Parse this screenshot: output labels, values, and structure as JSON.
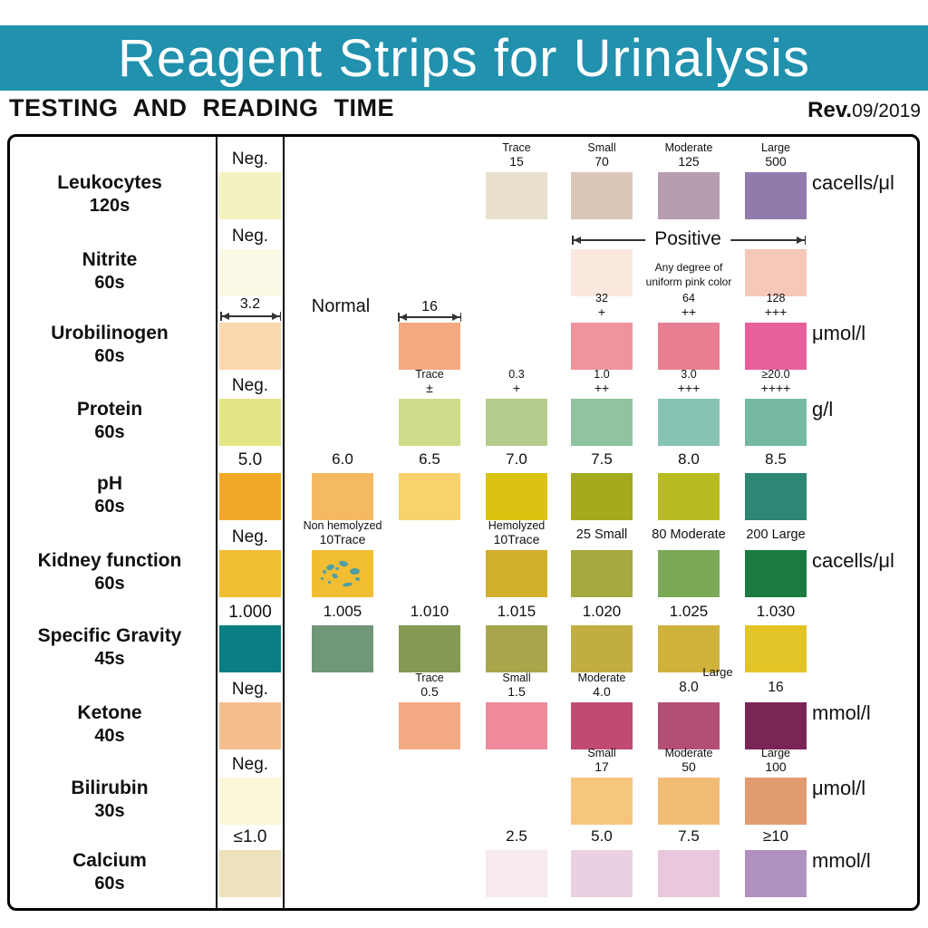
{
  "header": {
    "title": "Reagent Strips for Urinalysis",
    "subtitle": "TESTING AND READING TIME",
    "revision_label": "Rev.",
    "revision_value": "09/2019"
  },
  "theme": {
    "band_color": "#2191ad",
    "border_color": "#000000",
    "speckle_color": "#4e9fa3"
  },
  "chart_data": {
    "type": "table",
    "title": "Reagent Strips for Urinalysis",
    "subtitle": "TESTING AND READING TIME",
    "revision": "Rev.09/2019",
    "legend_note": "Column 1 (boxed) is the negative/baseline reference pad; columns 2-7 are increasing reaction levels",
    "rows": [
      {
        "parameter": "Leukocytes",
        "time": "120s",
        "unit": "cacells/μl",
        "box": {
          "label": "Neg.",
          "color": "#f5f2c2"
        },
        "cells": [
          {
            "col": 4,
            "labels": [
              "Trace",
              "15"
            ],
            "color": "#e8e0cc"
          },
          {
            "col": 5,
            "labels": [
              "Small",
              "70"
            ],
            "color": "#dbc6b8"
          },
          {
            "col": 6,
            "labels": [
              "Moderate",
              "125"
            ],
            "color": "#b89db0"
          },
          {
            "col": 7,
            "labels": [
              "Large",
              "500"
            ],
            "color": "#917bad"
          }
        ]
      },
      {
        "parameter": "Nitrite",
        "time": "60s",
        "unit": null,
        "box": {
          "label": "Neg.",
          "color": "#fdf9e7"
        },
        "positive_span": {
          "label": "Positive",
          "note": [
            "Any degree of",
            "uniform pink color"
          ]
        },
        "cells": [
          {
            "col": 5,
            "labels": [],
            "color": "#fae8de"
          },
          {
            "col": 7,
            "labels": [],
            "color": "#f5c8b8"
          }
        ]
      },
      {
        "parameter": "Urobilinogen",
        "time": "60s",
        "unit": "μmol/l",
        "box": {
          "label": "3.2",
          "arrow": true,
          "color": "#fbd8ad"
        },
        "normal_label": "Normal",
        "cells": [
          {
            "col": 3,
            "labels": [
              "16"
            ],
            "arrow": true,
            "color": "#f4a97e"
          },
          {
            "col": 5,
            "labels": [
              "32",
              "+"
            ],
            "color": "#ef949c"
          },
          {
            "col": 6,
            "labels": [
              "64",
              "++"
            ],
            "color": "#e87e92"
          },
          {
            "col": 7,
            "labels": [
              "128",
              "+++"
            ],
            "color": "#e7609b"
          }
        ]
      },
      {
        "parameter": "Protein",
        "time": "60s",
        "unit": "g/l",
        "box": {
          "label": "Neg.",
          "color": "#e4e584"
        },
        "cells": [
          {
            "col": 3,
            "labels": [
              "Trace",
              "±"
            ],
            "color": "#cedc8a"
          },
          {
            "col": 4,
            "labels": [
              "0.3",
              "+"
            ],
            "color": "#b3cc8b"
          },
          {
            "col": 5,
            "labels": [
              "1.0",
              "++"
            ],
            "color": "#90c3a0"
          },
          {
            "col": 6,
            "labels": [
              "3.0",
              "+++"
            ],
            "color": "#87c3b5"
          },
          {
            "col": 7,
            "labels": [
              "≥20.0",
              "++++"
            ],
            "color": "#75b9a3"
          }
        ]
      },
      {
        "parameter": "pH",
        "time": "60s",
        "unit": null,
        "box": {
          "label": "5.0",
          "color": "#f2a827"
        },
        "cells": [
          {
            "col": 2,
            "labels": [
              "6.0"
            ],
            "color": "#f6b963"
          },
          {
            "col": 3,
            "labels": [
              "6.5"
            ],
            "color": "#f8d26a"
          },
          {
            "col": 4,
            "labels": [
              "7.0"
            ],
            "color": "#dbc311"
          },
          {
            "col": 5,
            "labels": [
              "7.5"
            ],
            "color": "#a4a91e"
          },
          {
            "col": 6,
            "labels": [
              "8.0"
            ],
            "color": "#b8bc21"
          },
          {
            "col": 7,
            "labels": [
              "8.5"
            ],
            "color": "#2e8674"
          }
        ]
      },
      {
        "parameter": "Kidney function",
        "time": "60s",
        "unit": "cacells/μl",
        "box": {
          "label": "Neg.",
          "color": "#f1bd33"
        },
        "cells": [
          {
            "col": 2,
            "labels": [
              "Non hemolyzed",
              "10Trace"
            ],
            "color": "#f1bd33",
            "speckled": true
          },
          {
            "col": 4,
            "labels": [
              "Hemolyzed",
              "10Trace"
            ],
            "color": "#d2af2b"
          },
          {
            "col": 5,
            "labels": [
              "25 Small"
            ],
            "color": "#a6a840"
          },
          {
            "col": 6,
            "labels": [
              "80 Moderate"
            ],
            "color": "#7ba958"
          },
          {
            "col": 7,
            "labels": [
              "200 Large"
            ],
            "color": "#1a7a40"
          }
        ]
      },
      {
        "parameter": "Specific Gravity",
        "time": "45s",
        "unit": null,
        "box": {
          "label": "1.000",
          "color": "#0a7e82"
        },
        "cells": [
          {
            "col": 2,
            "labels": [
              "1.005"
            ],
            "color": "#6f9778"
          },
          {
            "col": 3,
            "labels": [
              "1.010"
            ],
            "color": "#849a52"
          },
          {
            "col": 4,
            "labels": [
              "1.015"
            ],
            "color": "#a8a64b"
          },
          {
            "col": 5,
            "labels": [
              "1.020"
            ],
            "color": "#c2ae40"
          },
          {
            "col": 6,
            "labels": [
              "1.025"
            ],
            "color": "#cfb23c"
          },
          {
            "col": 7,
            "labels": [
              "1.030"
            ],
            "color": "#e3c427"
          }
        ]
      },
      {
        "parameter": "Ketone",
        "time": "40s",
        "unit": "mmol/l",
        "box": {
          "label": "Neg.",
          "color": "#f5bf8d"
        },
        "float_label": "Large",
        "cells": [
          {
            "col": 3,
            "labels": [
              "Trace",
              "0.5"
            ],
            "color": "#f3a984"
          },
          {
            "col": 4,
            "labels": [
              "Small",
              "1.5"
            ],
            "color": "#ee8a9c"
          },
          {
            "col": 5,
            "labels": [
              "Moderate",
              "4.0"
            ],
            "color": "#c14a72"
          },
          {
            "col": 6,
            "labels": [
              "8.0"
            ],
            "color": "#b34e75"
          },
          {
            "col": 7,
            "labels": [
              "16"
            ],
            "color": "#7b2456"
          }
        ]
      },
      {
        "parameter": "Bilirubin",
        "time": "30s",
        "unit": "μmol/l",
        "box": {
          "label": "Neg.",
          "color": "#fbf7d9"
        },
        "cells": [
          {
            "col": 5,
            "labels": [
              "Small",
              "17"
            ],
            "color": "#f6c57e"
          },
          {
            "col": 6,
            "labels": [
              "Moderate",
              "50"
            ],
            "color": "#f1bc76"
          },
          {
            "col": 7,
            "labels": [
              "Large",
              "100"
            ],
            "color": "#e29a70"
          }
        ]
      },
      {
        "parameter": "Calcium",
        "time": "60s",
        "unit": "mmol/l",
        "box": {
          "label": "≤1.0",
          "color": "#eee1bb"
        },
        "cells": [
          {
            "col": 4,
            "labels": [
              "2.5"
            ],
            "color": "#f7e9ed"
          },
          {
            "col": 5,
            "labels": [
              "5.0"
            ],
            "color": "#e9d1e1"
          },
          {
            "col": 6,
            "labels": [
              "7.5"
            ],
            "color": "#e9c7dd"
          },
          {
            "col": 7,
            "labels": [
              "≥10"
            ],
            "color": "#b190c2"
          }
        ]
      }
    ]
  }
}
